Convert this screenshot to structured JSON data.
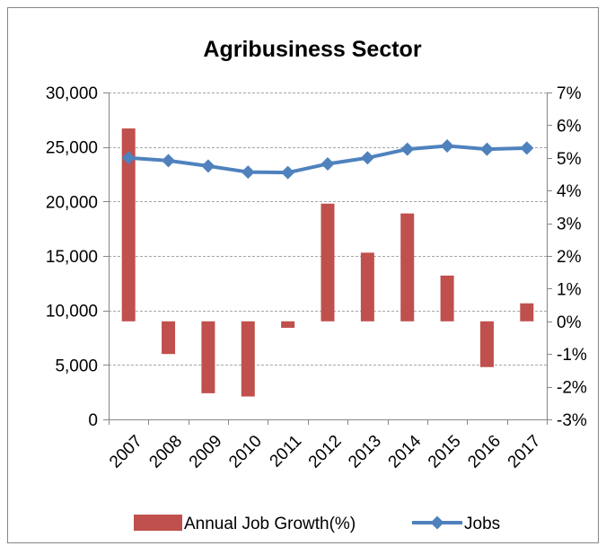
{
  "chart_data": {
    "type": "bar",
    "title": "Agribusiness Sector",
    "categories": [
      "2007",
      "2008",
      "2009",
      "2010",
      "2011",
      "2012",
      "2013",
      "2014",
      "2015",
      "2016",
      "2017"
    ],
    "series": [
      {
        "name": "Annual Job Growth(%)",
        "type": "bar",
        "axis": "right",
        "unit": "%",
        "color": "#C0504D",
        "values": [
          5.9,
          -1.0,
          -2.2,
          -2.3,
          -0.2,
          3.6,
          2.1,
          3.3,
          1.4,
          -1.4,
          0.55
        ]
      },
      {
        "name": "Jobs",
        "type": "line",
        "axis": "left",
        "color": "#4F81BD",
        "values": [
          24000,
          23750,
          23250,
          22700,
          22650,
          23450,
          24000,
          24800,
          25100,
          24800,
          24900
        ]
      }
    ],
    "y_left": {
      "min": 0,
      "max": 30000,
      "ticks": [
        0,
        5000,
        10000,
        15000,
        20000,
        25000,
        30000
      ],
      "tick_labels": [
        "0",
        "5,000",
        "10,000",
        "15,000",
        "20,000",
        "25,000",
        "30,000"
      ]
    },
    "y_right": {
      "min": -3,
      "max": 7,
      "ticks": [
        -3,
        -2,
        -1,
        0,
        1,
        2,
        3,
        4,
        5,
        6,
        7
      ],
      "tick_labels": [
        "-3%",
        "-2%",
        "-1%",
        "0%",
        "1%",
        "2%",
        "3%",
        "4%",
        "5%",
        "6%",
        "7%"
      ]
    },
    "grid": true,
    "legend": "bottom"
  }
}
